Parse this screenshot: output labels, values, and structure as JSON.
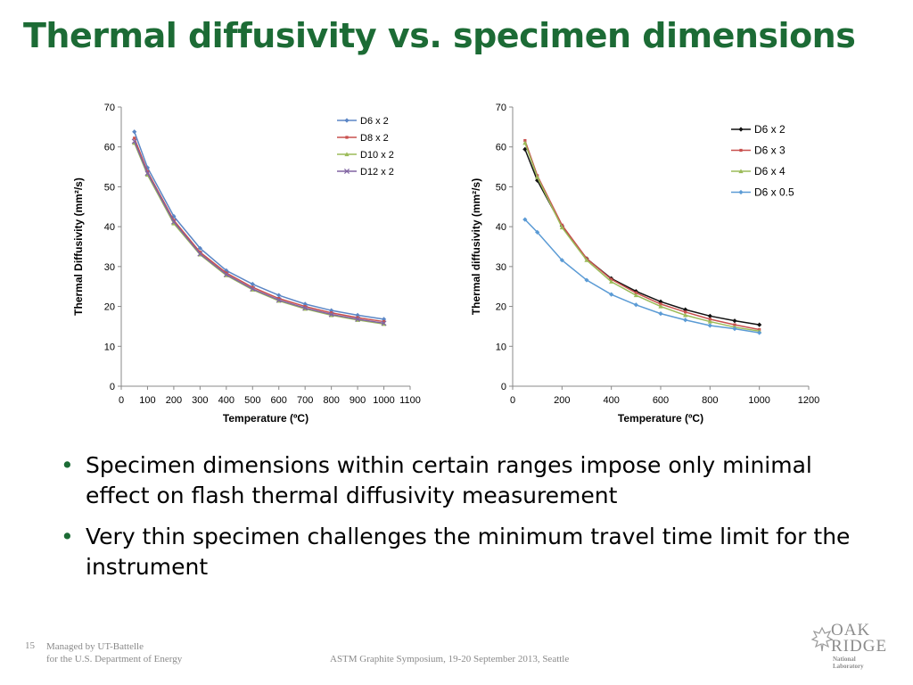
{
  "slide": {
    "title": "Thermal diffusivity vs. specimen dimensions",
    "bullets": [
      "Specimen dimensions within certain ranges impose only minimal effect on flash thermal diffusivity measurement",
      "Very thin specimen challenges the minimum travel time limit for the instrument"
    ],
    "page_number": "15",
    "footer_managed": "Managed by UT-Battelle",
    "footer_doe": "for the U.S. Department of Energy",
    "footer_center": "ASTM Graphite Symposium, 19-20 September 2013, Seattle",
    "logo": {
      "line1": "OAK",
      "line2": "RIDGE",
      "line3": "National Laboratory"
    }
  },
  "chart_data": [
    {
      "type": "line",
      "xlabel": "Temperature (ºC)",
      "ylabel": "Thermal Diffusivity (mm²/s)",
      "xlim": [
        0,
        1100
      ],
      "ylim": [
        0,
        70
      ],
      "xticks": [
        "0",
        "100",
        "200",
        "300",
        "400",
        "500",
        "600",
        "700",
        "800",
        "900",
        "1000",
        "1100"
      ],
      "yticks": [
        "0",
        "10",
        "20",
        "30",
        "40",
        "50",
        "60",
        "70"
      ],
      "legend_position": "top-right",
      "grid": false,
      "series": [
        {
          "name": "D6 x 2",
          "color": "#5b86c5",
          "marker": "diamond",
          "x": [
            50,
            100,
            200,
            300,
            400,
            500,
            600,
            700,
            800,
            900,
            1000
          ],
          "y": [
            63.8,
            54.8,
            42.6,
            34.6,
            29.0,
            25.6,
            22.8,
            20.6,
            19.0,
            17.8,
            16.8
          ]
        },
        {
          "name": "D8 x 2",
          "color": "#c9504e",
          "marker": "square",
          "x": [
            50,
            100,
            200,
            300,
            400,
            500,
            600,
            700,
            800,
            900,
            1000
          ],
          "y": [
            62.2,
            53.8,
            41.6,
            33.6,
            28.4,
            24.8,
            22.0,
            20.0,
            18.4,
            17.2,
            16.2
          ]
        },
        {
          "name": "D10 x 2",
          "color": "#9bbb59",
          "marker": "triangle",
          "x": [
            50,
            100,
            200,
            300,
            400,
            500,
            600,
            700,
            800,
            900,
            1000
          ],
          "y": [
            61.0,
            53.0,
            40.8,
            33.0,
            27.8,
            24.2,
            21.4,
            19.4,
            17.8,
            16.6,
            15.6
          ]
        },
        {
          "name": "D12 x 2",
          "color": "#8064a2",
          "marker": "x",
          "x": [
            50,
            100,
            200,
            300,
            400,
            500,
            600,
            700,
            800,
            900,
            1000
          ],
          "y": [
            61.4,
            53.4,
            41.2,
            33.2,
            28.0,
            24.4,
            21.6,
            19.6,
            18.0,
            16.8,
            15.8
          ]
        }
      ]
    },
    {
      "type": "line",
      "xlabel": "Temperature (ºC)",
      "ylabel": "Thermal diffusivity (mm²/s)",
      "xlim": [
        0,
        1200
      ],
      "ylim": [
        0,
        70
      ],
      "xticks": [
        "0",
        "200",
        "400",
        "600",
        "800",
        "1000",
        "1200"
      ],
      "yticks": [
        "0",
        "10",
        "20",
        "30",
        "40",
        "50",
        "60",
        "70"
      ],
      "legend_position": "top-right",
      "grid": false,
      "series": [
        {
          "name": "D6 x 2",
          "color": "#111111",
          "marker": "diamond",
          "x": [
            50,
            100,
            200,
            300,
            400,
            500,
            600,
            700,
            800,
            900,
            1000
          ],
          "y": [
            59.4,
            51.6,
            40.2,
            32.0,
            27.0,
            23.8,
            21.2,
            19.2,
            17.6,
            16.4,
            15.4
          ]
        },
        {
          "name": "D6 x 3",
          "color": "#c9504e",
          "marker": "square",
          "x": [
            50,
            100,
            200,
            300,
            400,
            500,
            600,
            700,
            800,
            900,
            1000
          ],
          "y": [
            61.6,
            52.8,
            40.4,
            32.0,
            26.8,
            23.4,
            20.6,
            18.6,
            16.8,
            15.4,
            14.2
          ]
        },
        {
          "name": "D6 x 4",
          "color": "#9bbb59",
          "marker": "triangle",
          "x": [
            50,
            100,
            200,
            300,
            400,
            500,
            600,
            700,
            800,
            900,
            1000
          ],
          "y": [
            61.0,
            52.4,
            39.8,
            31.6,
            26.2,
            22.8,
            20.0,
            17.8,
            16.2,
            14.8,
            13.8
          ]
        },
        {
          "name": "D6 x 0.5",
          "color": "#5b9bd5",
          "marker": "diamond",
          "x": [
            50,
            100,
            200,
            300,
            400,
            500,
            600,
            700,
            800,
            900,
            1000
          ],
          "y": [
            41.8,
            38.6,
            31.6,
            26.6,
            23.0,
            20.4,
            18.2,
            16.6,
            15.2,
            14.4,
            13.4
          ]
        }
      ]
    }
  ]
}
